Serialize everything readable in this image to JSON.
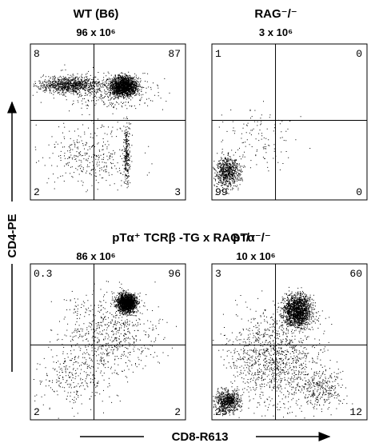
{
  "panels": [
    {
      "title": "WT (B6)",
      "count": "96 x 10⁶",
      "quadrants": {
        "upper_left": 8,
        "upper_right": 87,
        "lower_left": 2,
        "lower_right": 3
      }
    },
    {
      "title": "RAG⁻/⁻",
      "count": "3 x 10⁶",
      "quadrants": {
        "upper_left": 1,
        "upper_right": 0,
        "lower_left": 99,
        "lower_right": 0
      }
    },
    {
      "title": "pTα⁺ TCRβ -TG x RAG⁻/⁻",
      "count": "86 x 10⁶",
      "quadrants": {
        "upper_left": 0.3,
        "upper_right": 96,
        "lower_left": 2,
        "lower_right": 2
      }
    },
    {
      "title": "pTα⁻/⁻",
      "count": "10 x 10⁶",
      "quadrants": {
        "upper_left": 3,
        "upper_right": 60,
        "lower_left": 25,
        "lower_right": 12
      }
    }
  ],
  "y_axis_label": "CD4-PE",
  "x_axis_label": "CD8-R613"
}
